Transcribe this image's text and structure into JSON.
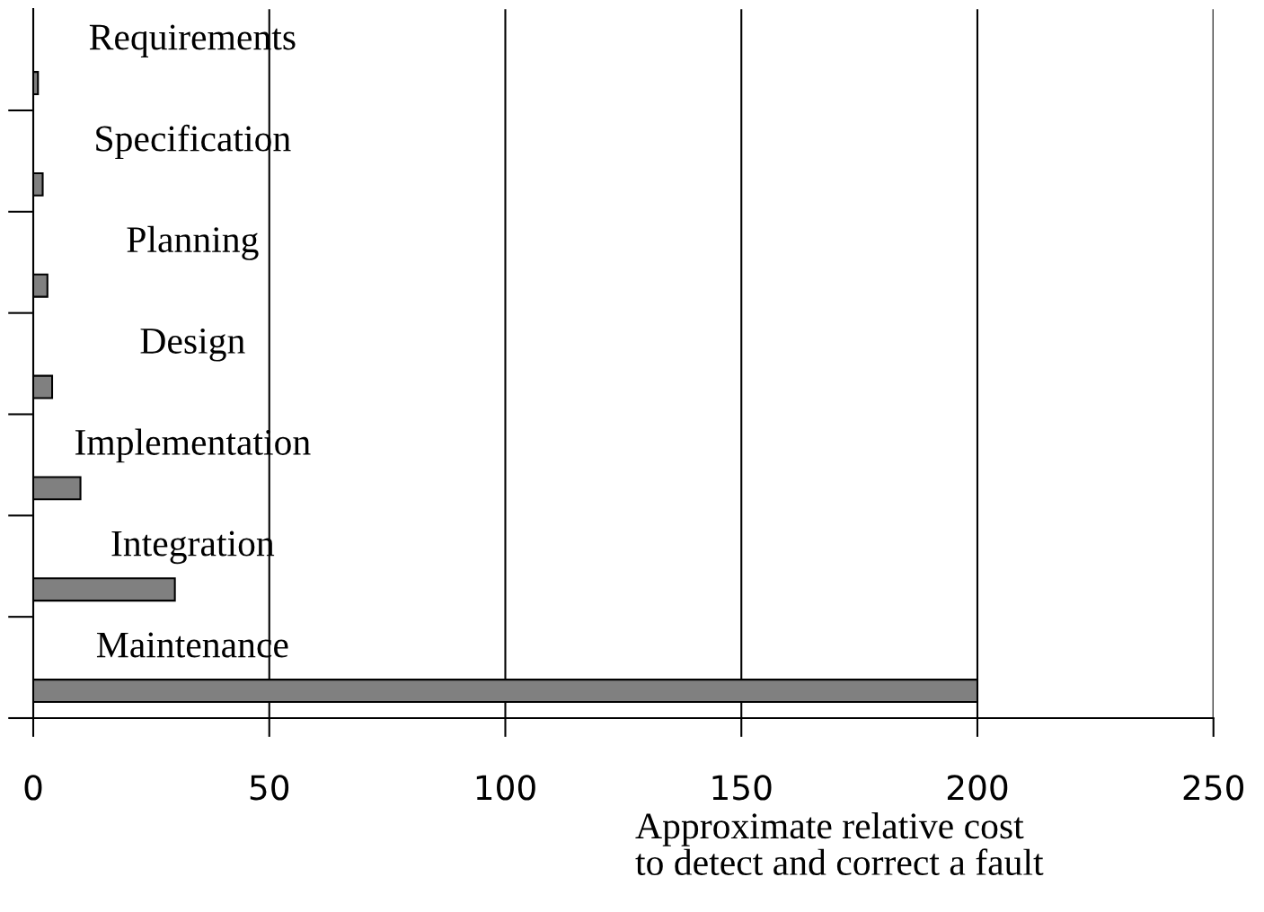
{
  "chart_data": {
    "type": "bar",
    "orientation": "horizontal",
    "categories": [
      "Requirements",
      "Specification",
      "Planning",
      "Design",
      "Implementation",
      "Integration",
      "Maintenance"
    ],
    "values": [
      1,
      2,
      3,
      4,
      10,
      30,
      200
    ],
    "color": "#808080",
    "xlim": [
      0,
      250
    ],
    "xticks": [
      0,
      50,
      100,
      150,
      200,
      250
    ],
    "xlabel": "Approximate relative cost\nto detect and correct a fault",
    "grid": "x"
  }
}
